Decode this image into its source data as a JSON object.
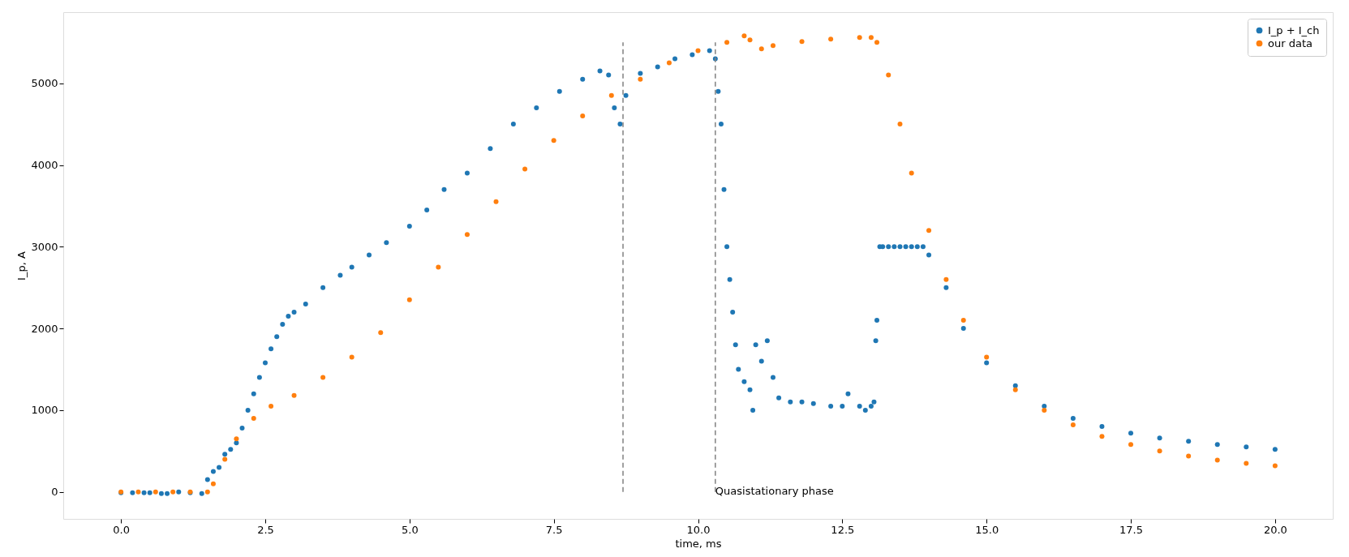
{
  "chart_data": {
    "type": "scatter",
    "xlabel": "time, ms",
    "ylabel": "I_p, A",
    "xlim": [
      -1,
      21
    ],
    "ylim": [
      -330,
      5870
    ],
    "xticks": [
      {
        "value": 0,
        "label": "0.0"
      },
      {
        "value": 2.5,
        "label": "2.5"
      },
      {
        "value": 5,
        "label": "5.0"
      },
      {
        "value": 7.5,
        "label": "7.5"
      },
      {
        "value": 10,
        "label": "10.0"
      },
      {
        "value": 12.5,
        "label": "12.5"
      },
      {
        "value": 15,
        "label": "15.0"
      },
      {
        "value": 17.5,
        "label": "17.5"
      },
      {
        "value": 20,
        "label": "20.0"
      }
    ],
    "yticks": [
      0,
      1000,
      2000,
      3000,
      4000,
      5000
    ],
    "grid": false,
    "legend": "top right",
    "marker": "circle",
    "annotations": [
      {
        "text": "Quasistationary phase",
        "x": 10.3,
        "y": 0
      }
    ],
    "series": [
      {
        "name": "I_p + I_ch",
        "color": "#1f77b4",
        "x": [
          0,
          0.2,
          0.4,
          0.5,
          0.7,
          0.8,
          1.0,
          1.2,
          1.4,
          1.5,
          1.6,
          1.7,
          1.8,
          1.9,
          2.0,
          2.1,
          2.2,
          2.3,
          2.4,
          2.5,
          2.6,
          2.7,
          2.8,
          2.9,
          3.0,
          3.2,
          3.5,
          3.8,
          4.0,
          4.3,
          4.6,
          5.0,
          5.3,
          5.6,
          6.0,
          6.4,
          6.8,
          7.2,
          7.6,
          8.0,
          8.3,
          8.45,
          8.55,
          8.65,
          8.75,
          9.0,
          9.3,
          9.6,
          9.9,
          10.2,
          10.3,
          10.35,
          10.4,
          10.45,
          10.5,
          10.55,
          10.6,
          10.65,
          10.7,
          10.8,
          10.9,
          10.95,
          11.0,
          11.1,
          11.2,
          11.3,
          11.4,
          11.6,
          11.8,
          12.0,
          12.3,
          12.5,
          12.6,
          12.8,
          12.9,
          13.0,
          13.05,
          13.08,
          13.1,
          13.15,
          13.2,
          13.3,
          13.4,
          13.5,
          13.6,
          13.7,
          13.8,
          13.9,
          14.0,
          14.3,
          14.6,
          15.0,
          15.5,
          16.0,
          16.5,
          17.0,
          17.5,
          18.0,
          18.5,
          19.0,
          19.5,
          20.0
        ],
        "values": [
          -10,
          -10,
          -10,
          -10,
          -20,
          -20,
          0,
          -10,
          -20,
          150,
          250,
          300,
          460,
          520,
          600,
          780,
          1000,
          1200,
          1400,
          1580,
          1750,
          1900,
          2050,
          2150,
          2200,
          2300,
          2500,
          2650,
          2750,
          2900,
          3050,
          3250,
          3450,
          3700,
          3900,
          4200,
          4500,
          4700,
          4900,
          5050,
          5150,
          5100,
          4700,
          4500,
          4850,
          5120,
          5200,
          5300,
          5350,
          5400,
          5300,
          4900,
          4500,
          3700,
          3000,
          2600,
          2200,
          1800,
          1500,
          1350,
          1250,
          1000,
          1800,
          1600,
          1850,
          1400,
          1150,
          1100,
          1100,
          1080,
          1050,
          1050,
          1200,
          1050,
          1000,
          1050,
          1100,
          1850,
          2100,
          3000,
          3000,
          3000,
          3000,
          3000,
          3000,
          3000,
          3000,
          3000,
          2900,
          2500,
          2000,
          1580,
          1300,
          1050,
          900,
          800,
          720,
          660,
          620,
          580,
          550,
          520
        ]
      },
      {
        "name": "our data",
        "color": "#ff7f0e",
        "x": [
          0,
          0.3,
          0.6,
          0.9,
          1.2,
          1.5,
          1.6,
          1.8,
          2.0,
          2.3,
          2.6,
          3.0,
          3.5,
          4.0,
          4.5,
          5.0,
          5.5,
          6.0,
          6.5,
          7.0,
          7.5,
          8.0,
          8.5,
          9.0,
          9.5,
          10.0,
          10.5,
          10.8,
          10.9,
          11.1,
          11.3,
          11.8,
          12.3,
          12.8,
          13.0,
          13.1,
          13.3,
          13.5,
          13.7,
          14.0,
          14.3,
          14.6,
          15.0,
          15.5,
          16.0,
          16.5,
          17.0,
          17.5,
          18.0,
          18.5,
          19.0,
          19.5,
          20.0
        ],
        "values": [
          0,
          0,
          0,
          0,
          0,
          0,
          100,
          400,
          650,
          900,
          1050,
          1180,
          1400,
          1650,
          1950,
          2350,
          2750,
          3150,
          3550,
          3950,
          4300,
          4600,
          4850,
          5050,
          5250,
          5400,
          5500,
          5580,
          5530,
          5420,
          5460,
          5510,
          5540,
          5560,
          5560,
          5500,
          5100,
          4500,
          3900,
          3200,
          2600,
          2100,
          1650,
          1250,
          1000,
          820,
          680,
          580,
          500,
          440,
          390,
          350,
          320
        ]
      },
      {
        "type": "line",
        "color": "#808080",
        "line_style": "dashed",
        "marker": "none",
        "x": [
          8.7,
          8.7
        ],
        "values": [
          0,
          5500
        ]
      },
      {
        "type": "line",
        "color": "#808080",
        "line_style": "dashed",
        "marker": "none",
        "x": [
          10.3,
          10.3
        ],
        "values": [
          0,
          5500
        ]
      }
    ]
  }
}
